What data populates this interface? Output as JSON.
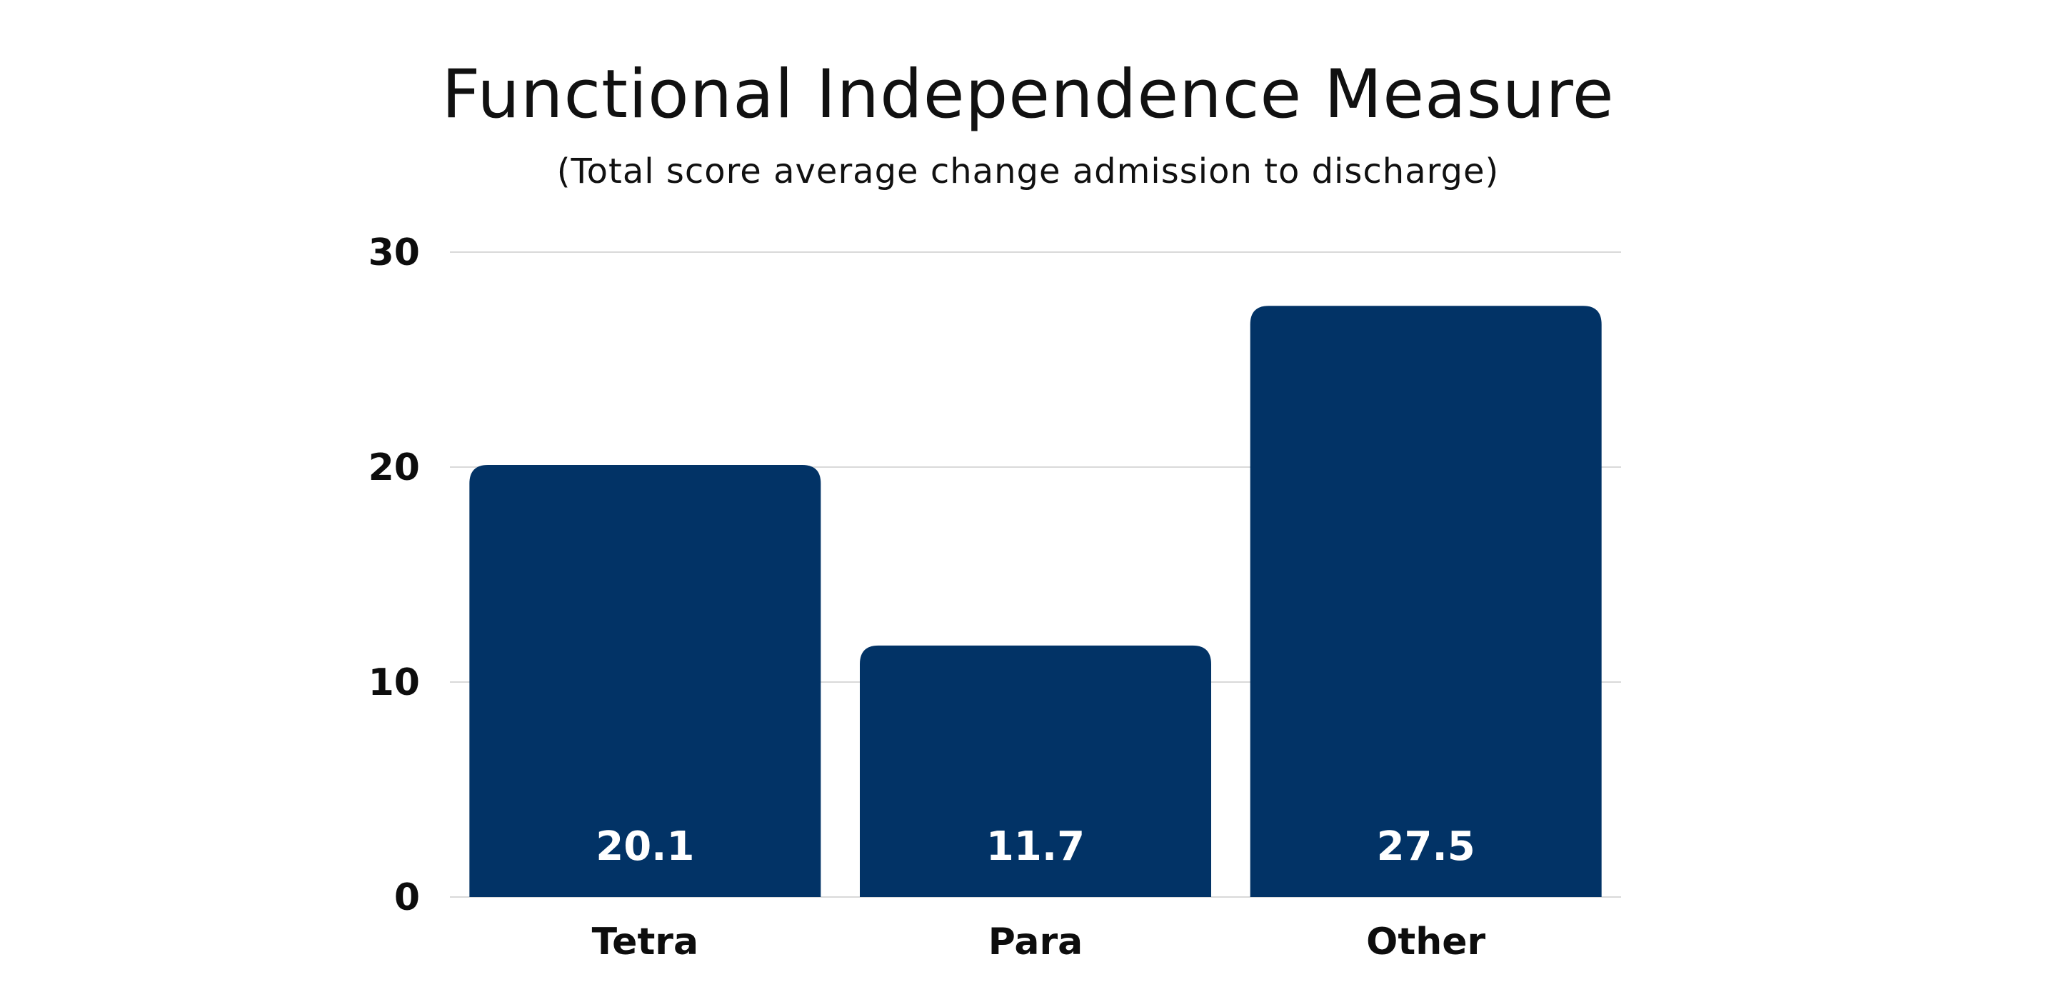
{
  "chart_data": {
    "type": "bar",
    "title": "Functional Independence Measure",
    "subtitle": "(Total score average change admission to discharge)",
    "categories": [
      "Tetra",
      "Para",
      "Other"
    ],
    "values": [
      20.1,
      11.7,
      27.5
    ],
    "value_labels": [
      "20.1",
      "11.7",
      "27.5"
    ],
    "ylim": [
      0,
      30
    ],
    "yticks": [
      0,
      10,
      20,
      30
    ],
    "ytick_labels": [
      "0",
      "10",
      "20",
      "30"
    ],
    "grid": true,
    "bar_color": "#023366",
    "grid_color": "#d9d9d9"
  }
}
